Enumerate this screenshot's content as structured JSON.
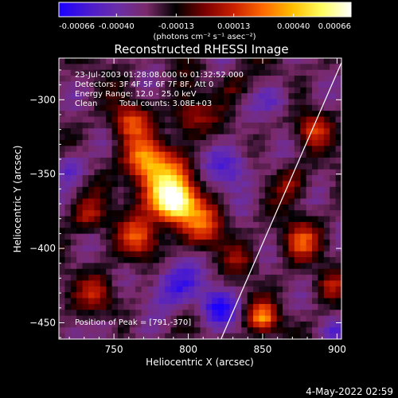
{
  "chart_data": {
    "type": "heatmap",
    "title": "Reconstructed RHESSI Image",
    "xlabel": "Heliocentric X (arcsec)",
    "ylabel": "Heliocentric Y (arcsec)",
    "xlim": [
      713,
      903
    ],
    "ylim": [
      -461,
      -272
    ],
    "xticks": [
      750,
      800,
      850,
      900
    ],
    "yticks": [
      -300,
      -350,
      -400,
      -450
    ],
    "colorbar": {
      "range": [
        -0.00066,
        0.00066
      ],
      "tick_values": [
        -0.00066,
        -0.0004,
        -0.00013,
        0.00013,
        0.0004,
        0.00066
      ],
      "tick_labels": [
        "-0.00066",
        "-0.00040",
        "-0.00013",
        "0.00013",
        "0.00040",
        "0.00066"
      ],
      "units": "(photons cm⁻² s⁻¹ asec⁻²)",
      "colors": [
        "#1a00ff",
        "#4a1ad0",
        "#6a2ea8",
        "#7a2a6a",
        "#000000",
        "#7a0000",
        "#cc2000",
        "#ff6a00",
        "#ffbe00",
        "#ffff60",
        "#ffffff"
      ]
    },
    "annotations": {
      "time_range": "23-Jul-2003 01:28:08.000 to 01:32:52.000",
      "detectors": "Detectors: 3F 4F 5F 6F 7F 8F, Att 0",
      "energy_range": "Energy Range: 12.0 - 25.0 keV",
      "method": "Clean",
      "total_counts": "Total counts: 3.08E+03",
      "peak_label": "Position of Peak = [791,-370]"
    },
    "peak_position": [
      791,
      -370
    ],
    "limb_line": [
      [
        822,
        -461
      ],
      [
        903,
        -275
      ]
    ],
    "features": [
      {
        "x": 791,
        "y": -370,
        "value": 0.00066,
        "sigma": 9
      },
      {
        "x": 784,
        "y": -358,
        "value": 0.00052,
        "sigma": 14
      },
      {
        "x": 770,
        "y": -340,
        "value": 0.00045,
        "sigma": 10
      },
      {
        "x": 760,
        "y": -315,
        "value": 0.00036,
        "sigma": 9
      },
      {
        "x": 800,
        "y": -312,
        "value": 0.00032,
        "sigma": 9
      },
      {
        "x": 768,
        "y": -393,
        "value": 0.00036,
        "sigma": 10
      },
      {
        "x": 810,
        "y": -385,
        "value": 0.00034,
        "sigma": 11
      },
      {
        "x": 733,
        "y": -378,
        "value": 0.0003,
        "sigma": 8
      },
      {
        "x": 740,
        "y": -430,
        "value": 0.00028,
        "sigma": 9
      },
      {
        "x": 850,
        "y": -447,
        "value": 0.00048,
        "sigma": 7
      },
      {
        "x": 875,
        "y": -395,
        "value": 0.00036,
        "sigma": 9
      },
      {
        "x": 884,
        "y": -320,
        "value": 0.00032,
        "sigma": 8
      },
      {
        "x": 870,
        "y": -355,
        "value": 0.00022,
        "sigma": 8
      },
      {
        "x": 895,
        "y": -425,
        "value": 0.00022,
        "sigma": 7
      },
      {
        "x": 830,
        "y": -290,
        "value": 0.00018,
        "sigma": 7
      },
      {
        "x": 835,
        "y": -408,
        "value": 0.00016,
        "sigma": 7
      },
      {
        "x": 720,
        "y": -345,
        "value": -0.00028,
        "sigma": 8
      },
      {
        "x": 790,
        "y": -425,
        "value": -0.00035,
        "sigma": 12
      },
      {
        "x": 830,
        "y": -345,
        "value": -0.0003,
        "sigma": 11
      },
      {
        "x": 820,
        "y": -440,
        "value": -0.00034,
        "sigma": 9
      },
      {
        "x": 860,
        "y": -300,
        "value": -0.00024,
        "sigma": 8
      },
      {
        "x": 745,
        "y": -455,
        "value": -0.0002,
        "sigma": 6
      },
      {
        "x": 900,
        "y": -455,
        "value": -0.00018,
        "sigma": 6
      }
    ],
    "grid": false,
    "legend": "none"
  },
  "footer": {
    "timestamp": "4-May-2022 02:59"
  }
}
